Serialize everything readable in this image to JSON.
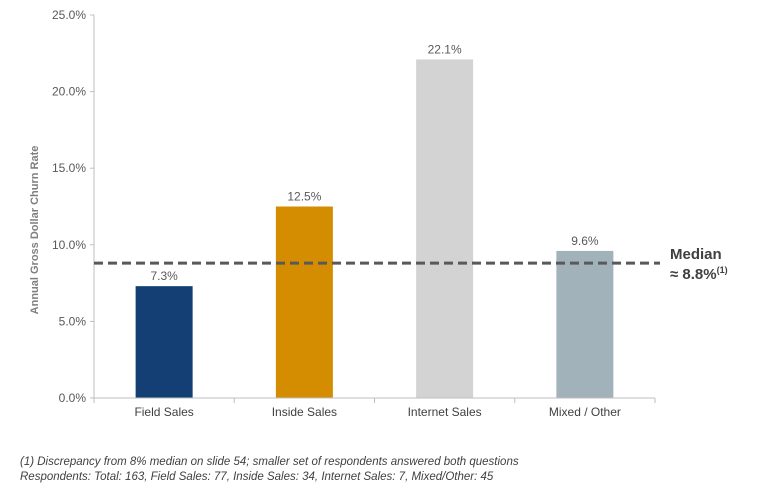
{
  "chart_data": {
    "type": "bar",
    "categories": [
      "Field Sales",
      "Inside Sales",
      "Internet Sales",
      "Mixed / Other"
    ],
    "values": [
      7.3,
      12.5,
      22.1,
      9.6
    ],
    "value_labels": [
      "7.3%",
      "12.5%",
      "22.1%",
      "9.6%"
    ],
    "bar_colors": [
      "#133f74",
      "#d48c00",
      "#d3d3d3",
      "#a2b2bb"
    ],
    "ylabel": "Annual Gross Dollar Churn Rate",
    "ylim": [
      0,
      25
    ],
    "yticks": [
      0,
      5,
      10,
      15,
      20,
      25
    ],
    "ytick_labels": [
      "0.0%",
      "5.0%",
      "10.0%",
      "15.0%",
      "20.0%",
      "25.0%"
    ],
    "grid": false,
    "reference_line": {
      "value": 8.8,
      "style": "dashed",
      "color": "#595959",
      "label_line1": "Median",
      "label_line2": "≈ 8.8%",
      "label_sup": "(1)"
    }
  },
  "footnotes": [
    "(1) Discrepancy from 8% median on slide 54; smaller set of respondents answered both questions",
    "Respondents: Total: 163, Field Sales: 77, Inside Sales: 34, Internet Sales: 7, Mixed/Other: 45"
  ]
}
